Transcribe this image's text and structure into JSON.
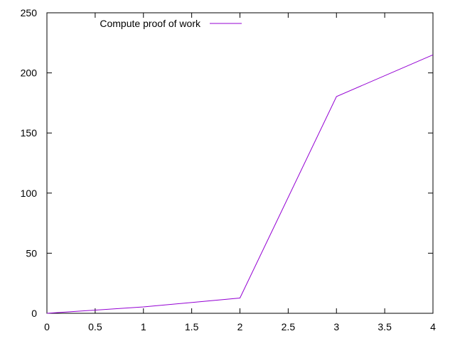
{
  "chart_data": {
    "type": "line",
    "title": "",
    "xlabel": "",
    "ylabel": "",
    "xlim": [
      0,
      4
    ],
    "ylim": [
      0,
      250
    ],
    "x_ticks": [
      "0",
      "0.5",
      "1",
      "1.5",
      "2",
      "2.5",
      "3",
      "3.5",
      "4"
    ],
    "y_ticks": [
      "0",
      "50",
      "100",
      "150",
      "200",
      "250"
    ],
    "grid": false,
    "legend_position": "top-left",
    "series": [
      {
        "name": "Compute proof of work",
        "color": "#9400d3",
        "x": [
          0,
          1,
          2,
          3,
          4
        ],
        "y": [
          0,
          5.3,
          12.7,
          180.3,
          215
        ]
      }
    ]
  }
}
